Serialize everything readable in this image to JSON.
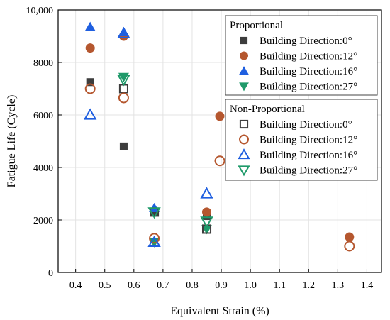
{
  "chart_data": {
    "type": "scatter",
    "xlabel": "Equivalent Strain (%)",
    "ylabel": "Fatigue Life (Cycle)",
    "xlim": [
      0.34,
      1.45
    ],
    "ylim": [
      0,
      10000
    ],
    "xticks": [
      "0.4",
      "0.5",
      "0.6",
      "0.7",
      "0.8",
      "0.9",
      "1.0",
      "1.1",
      "1.2",
      "1.3",
      "1.4"
    ],
    "xtick_values": [
      0.4,
      0.5,
      0.6,
      0.7,
      0.8,
      0.9,
      1.0,
      1.1,
      1.2,
      1.3,
      1.4
    ],
    "yticks": [
      "0",
      "2000",
      "4000",
      "6000",
      "8000",
      "10,000"
    ],
    "ytick_values": [
      0,
      2000,
      4000,
      6000,
      8000,
      10000
    ],
    "grid": true,
    "legend_placement": "top-right",
    "legend_groups": [
      {
        "title": "Proportional",
        "entries": [
          "Building Direction:0°",
          "Building Direction:12°",
          "Building Direction:16°",
          "Building Direction:27°"
        ]
      },
      {
        "title": "Non-Proportional",
        "entries": [
          "Building Direction:0°",
          "Building Direction:12°",
          "Building Direction:16°",
          "Building Direction:27°"
        ]
      }
    ],
    "series": [
      {
        "name": "Building Direction:0°",
        "group": "Proportional",
        "marker": "square",
        "filled": true,
        "color": "#3d3d3d",
        "x": [
          0.45,
          0.565,
          0.67,
          0.85
        ],
        "y": [
          7250,
          4800,
          2300,
          2150
        ]
      },
      {
        "name": "Building Direction:12°",
        "group": "Proportional",
        "marker": "circle",
        "filled": true,
        "color": "#b5572f",
        "x": [
          0.45,
          0.565,
          0.85,
          0.895,
          1.34
        ],
        "y": [
          8550,
          9000,
          2300,
          5950,
          1350
        ]
      },
      {
        "name": "Building Direction:16°",
        "group": "Proportional",
        "marker": "triangle-up",
        "filled": true,
        "color": "#1f5fe0",
        "x": [
          0.45,
          0.565,
          0.67
        ],
        "y": [
          9350,
          9150,
          2450
        ]
      },
      {
        "name": "Building Direction:27°",
        "group": "Proportional",
        "marker": "triangle-down",
        "filled": true,
        "color": "#1f9a6a",
        "x": [
          0.565,
          0.67,
          0.85
        ],
        "y": [
          7450,
          1150,
          1650
        ]
      },
      {
        "name": "Building Direction:0°",
        "group": "Non-Proportional",
        "marker": "square",
        "filled": false,
        "color": "#3d3d3d",
        "x": [
          0.565,
          0.67,
          0.85
        ],
        "y": [
          7000,
          2300,
          1650
        ]
      },
      {
        "name": "Building Direction:12°",
        "group": "Non-Proportional",
        "marker": "circle",
        "filled": false,
        "color": "#b5572f",
        "x": [
          0.45,
          0.565,
          0.67,
          0.895,
          1.34
        ],
        "y": [
          7000,
          6650,
          1300,
          4250,
          1000
        ]
      },
      {
        "name": "Building Direction:16°",
        "group": "Non-Proportional",
        "marker": "triangle-up",
        "filled": false,
        "color": "#1f5fe0",
        "x": [
          0.45,
          0.565,
          0.67,
          0.85
        ],
        "y": [
          6000,
          9100,
          1150,
          3000
        ]
      },
      {
        "name": "Building Direction:27°",
        "group": "Non-Proportional",
        "marker": "triangle-down",
        "filled": false,
        "color": "#1f9a6a",
        "x": [
          0.565,
          0.67,
          0.85
        ],
        "y": [
          7350,
          2300,
          1950
        ]
      }
    ]
  }
}
